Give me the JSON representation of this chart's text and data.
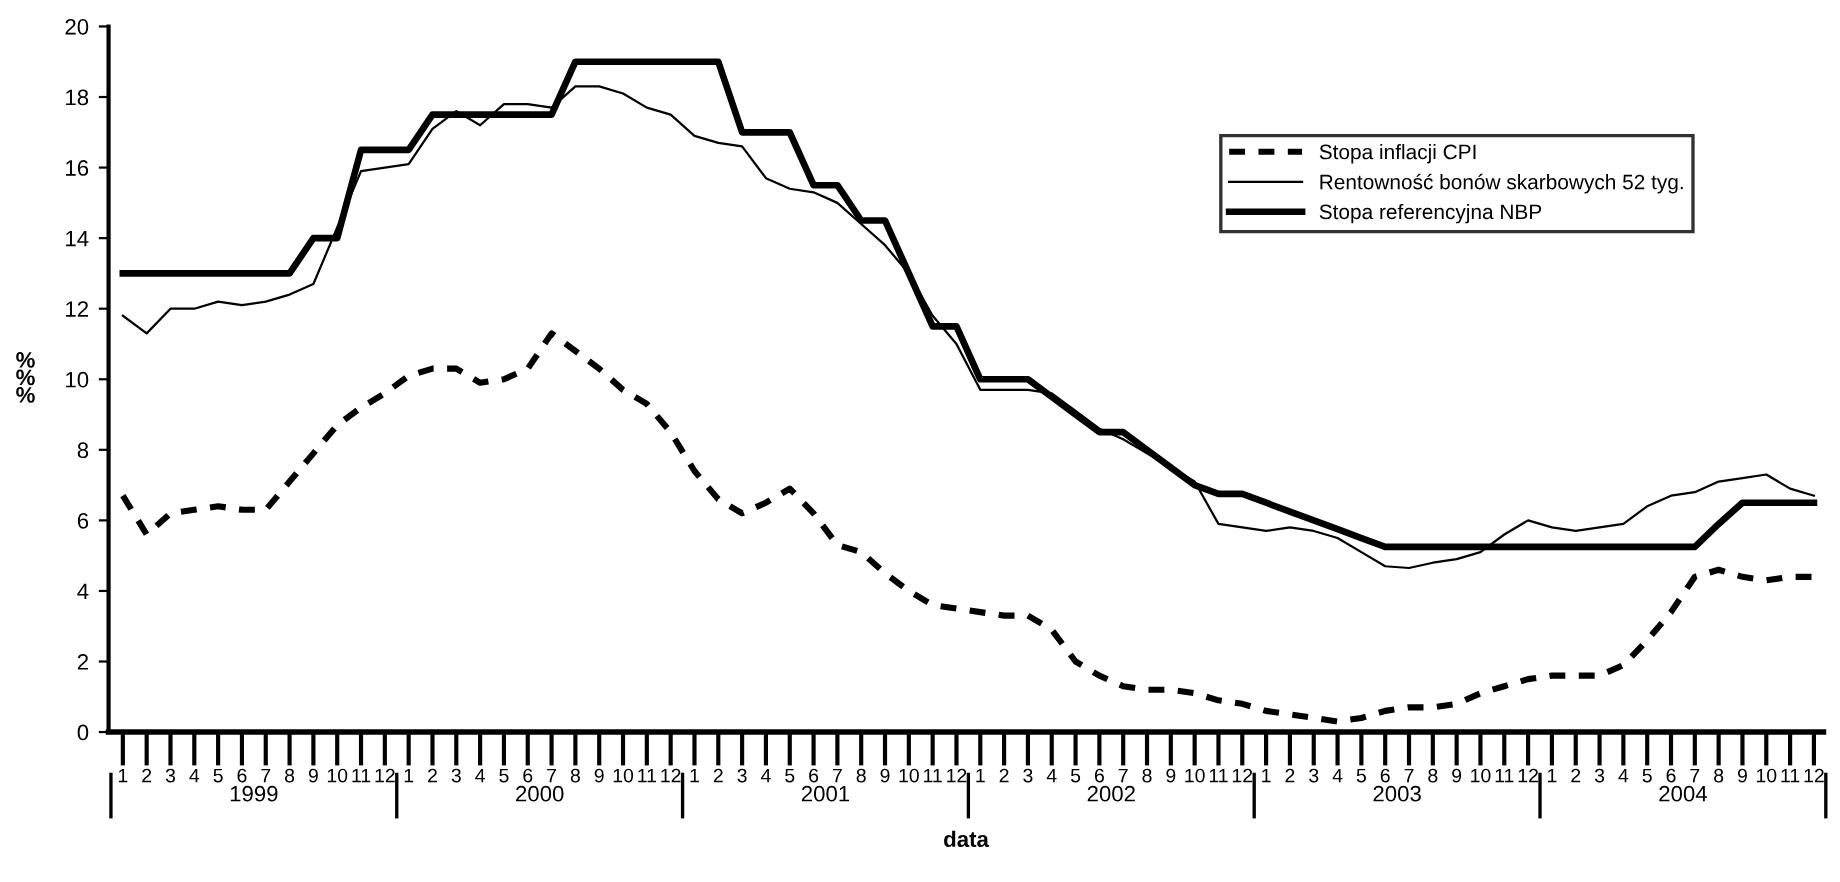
{
  "chart_data": {
    "type": "line",
    "xlabel": "data",
    "ylabel": "%%%",
    "categories": [
      "1",
      "2",
      "3",
      "4",
      "5",
      "6",
      "7",
      "8",
      "9",
      "10",
      "11",
      "12",
      "1",
      "2",
      "3",
      "4",
      "5",
      "6",
      "7",
      "8",
      "9",
      "10",
      "11",
      "12",
      "1",
      "2",
      "3",
      "4",
      "5",
      "6",
      "7",
      "8",
      "9",
      "10",
      "11",
      "12",
      "1",
      "2",
      "3",
      "4",
      "5",
      "6",
      "7",
      "8",
      "9",
      "10",
      "11",
      "12",
      "1",
      "2",
      "3",
      "4",
      "5",
      "6",
      "7",
      "8",
      "9",
      "10",
      "11",
      "12",
      "1",
      "2",
      "3",
      "4",
      "5",
      "6",
      "7",
      "8",
      "9",
      "10",
      "11",
      "12"
    ],
    "annotations": [
      "1999",
      "2000",
      "2001",
      "2002",
      "2003",
      "2004"
    ],
    "ylim": [
      0,
      20
    ],
    "yticks": [
      0,
      2,
      4,
      6,
      8,
      10,
      12,
      14,
      16,
      18,
      20
    ],
    "grid": false,
    "legend": "top right",
    "series": [
      {
        "name": "Stopa inflacji CPI",
        "color": "#000000",
        "line_style": "dashed",
        "values": [
          6.7,
          5.6,
          6.2,
          6.3,
          6.4,
          6.3,
          6.3,
          7.1,
          7.9,
          8.7,
          9.2,
          9.6,
          10.1,
          10.3,
          10.3,
          9.9,
          10.0,
          10.3,
          11.3,
          10.8,
          10.3,
          9.7,
          9.3,
          8.5,
          7.4,
          6.6,
          6.2,
          6.5,
          6.9,
          6.2,
          5.3,
          5.1,
          4.5,
          4.0,
          3.6,
          3.5,
          3.4,
          3.3,
          3.3,
          2.9,
          2.0,
          1.6,
          1.3,
          1.2,
          1.2,
          1.1,
          0.9,
          0.8,
          0.6,
          0.5,
          0.4,
          0.3,
          0.4,
          0.6,
          0.7,
          0.7,
          0.8,
          1.1,
          1.3,
          1.5,
          1.6,
          1.6,
          1.6,
          1.9,
          2.6,
          3.4,
          4.4,
          4.6,
          4.4,
          4.3,
          4.4,
          4.4
        ]
      },
      {
        "name": "Rentowność bonów skarbowych 52 tyg.",
        "color": "#000000",
        "line_style": "solid",
        "values": [
          11.8,
          11.3,
          12.0,
          12.0,
          12.2,
          12.1,
          12.2,
          12.4,
          12.7,
          14.3,
          15.9,
          16.0,
          16.1,
          17.1,
          17.6,
          17.2,
          17.8,
          17.8,
          17.7,
          18.3,
          18.3,
          18.1,
          17.7,
          17.5,
          16.9,
          16.7,
          16.6,
          15.7,
          15.4,
          15.3,
          15.0,
          14.4,
          13.8,
          13.0,
          11.8,
          11.0,
          9.7,
          9.7,
          9.7,
          9.6,
          9.1,
          8.6,
          8.3,
          7.9,
          7.5,
          7.1,
          5.9,
          5.8,
          5.7,
          5.8,
          5.7,
          5.5,
          5.1,
          4.7,
          4.65,
          4.8,
          4.9,
          5.1,
          5.6,
          6.0,
          5.8,
          5.7,
          5.8,
          5.9,
          6.4,
          6.7,
          6.8,
          7.1,
          7.2,
          7.3,
          6.9,
          6.7
        ]
      },
      {
        "name": "Stopa referencyjna NBP",
        "color": "#000000",
        "line_style": "solid",
        "values": [
          13,
          13,
          13,
          13,
          13,
          13,
          13,
          13,
          14,
          14,
          16.5,
          16.5,
          16.5,
          17.5,
          17.5,
          17.5,
          17.5,
          17.5,
          17.5,
          19,
          19,
          19,
          19,
          19,
          19,
          19,
          17,
          17,
          17,
          15.5,
          15.5,
          14.5,
          14.5,
          13,
          11.5,
          11.5,
          10,
          10,
          10,
          9.5,
          9,
          8.5,
          8.5,
          8,
          7.5,
          7,
          6.75,
          6.75,
          6.5,
          6.25,
          6,
          5.75,
          5.5,
          5.25,
          5.25,
          5.25,
          5.25,
          5.25,
          5.25,
          5.25,
          5.25,
          5.25,
          5.25,
          5.25,
          5.25,
          5.25,
          5.25,
          5.9,
          6.5,
          6.5,
          6.5,
          6.5
        ]
      }
    ]
  }
}
